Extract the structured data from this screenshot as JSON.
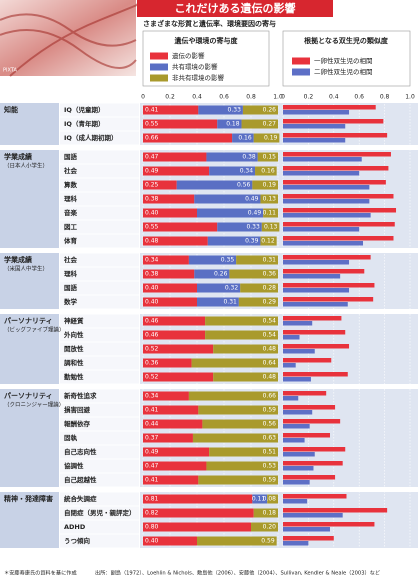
{
  "header": {
    "title": "これだけある遺伝の影響",
    "subtitle": "さまざまな形質と遺伝率、環境要因の寄与",
    "credit": "PIXTA"
  },
  "footer": {
    "note": "＊安藤寿康氏の資料を基に作成",
    "source": "出所：副島（1972）、Loehlin & Nichols、敷島他（2006）、安藤他（2004）、Sullivan, Kendler & Neale（2003）など"
  },
  "chart_data": [
    {
      "type": "bar",
      "orientation": "horizontal",
      "stacked": true,
      "title": "遺伝や環境の寄与度",
      "xlim": [
        0,
        1
      ],
      "xticks": [
        0,
        0.2,
        0.4,
        0.6,
        0.8,
        {
          "value": 1,
          "label": "1.0"
        }
      ],
      "grid": true,
      "groups": [
        {
          "name": "知能",
          "categories": [
            "IQ（児童期）",
            "IQ（青年期）",
            "IQ（成人期初期）"
          ]
        },
        {
          "name": "学業成績",
          "note": "（日本人小学生）",
          "categories": [
            "国語",
            "社会",
            "算数",
            "理科",
            "音楽",
            "図工",
            "体育"
          ]
        },
        {
          "name": "学業成績",
          "note": "（米国人中学生）",
          "categories": [
            "社会",
            "理科",
            "国語",
            "数学"
          ]
        },
        {
          "name": "パーソナリティ",
          "note": "（ビッグファイブ理論）",
          "categories": [
            "神経質",
            "外向性",
            "開放性",
            "調和性",
            "勤勉性"
          ]
        },
        {
          "name": "パーソナリティ",
          "note": "（クロニンジャー理論）",
          "categories": [
            "新奇性追求",
            "損害回避",
            "報酬依存",
            "固執",
            "自己志向性",
            "協調性",
            "自己超越性"
          ]
        },
        {
          "name": "精神・発達障害",
          "categories": [
            "統合失調症",
            "自閉症（男児・親評定）",
            "ADHD",
            "うつ傾向"
          ]
        }
      ],
      "series": [
        {
          "name": "遺伝の影響",
          "color": "#e8323c",
          "values": [
            0.41,
            0.55,
            0.66,
            0.47,
            0.49,
            0.25,
            0.38,
            0.4,
            0.55,
            0.48,
            0.34,
            0.38,
            0.4,
            0.4,
            0.46,
            0.46,
            0.52,
            0.36,
            0.52,
            0.34,
            0.41,
            0.44,
            0.37,
            0.49,
            0.47,
            0.41,
            0.81,
            0.82,
            0.8,
            0.4
          ],
          "value_labels": [
            "0.41",
            "0.55",
            "0.66",
            "0.47",
            "0.49",
            "0.25",
            "0.38",
            "0.40",
            "0.55",
            "0.48",
            "0.34",
            "0.38",
            "0.40",
            "0.40",
            "0.46",
            "0.46",
            "0.52",
            "0.36",
            "0.52",
            "0.34",
            "0.41",
            "0.44",
            "0.37",
            "0.49",
            "0.47",
            "0.41",
            "0.81",
            "0.82",
            "0.80",
            "0.40"
          ]
        },
        {
          "name": "共有環境の影響",
          "color": "#5a6fc4",
          "values": [
            0.33,
            0.18,
            0.16,
            0.38,
            0.34,
            0.56,
            0.49,
            0.49,
            0.33,
            0.39,
            0.35,
            0.26,
            0.32,
            0.31,
            null,
            null,
            null,
            null,
            null,
            null,
            null,
            null,
            null,
            null,
            null,
            null,
            0.11,
            null,
            null,
            null
          ],
          "value_labels": [
            "0.33",
            "0.18",
            "0.16",
            "0.38",
            "0.34",
            "0.56",
            "0.49",
            "0.49",
            "0.33",
            "0.39",
            "0.35",
            "0.26",
            "0.32",
            "0.31",
            null,
            null,
            null,
            null,
            null,
            null,
            null,
            null,
            null,
            null,
            null,
            null,
            "0.11",
            null,
            null,
            null
          ]
        },
        {
          "name": "非共有環境の影響",
          "color": "#a99a2c",
          "values": [
            0.26,
            0.27,
            0.19,
            0.15,
            0.16,
            0.19,
            0.13,
            0.11,
            0.13,
            0.12,
            0.31,
            0.36,
            0.28,
            0.29,
            0.54,
            0.54,
            0.48,
            0.64,
            0.48,
            0.66,
            0.59,
            0.56,
            0.63,
            0.51,
            0.53,
            0.59,
            0.08,
            0.18,
            0.2,
            0.59
          ],
          "value_labels": [
            "0.26",
            "0.27",
            "0.19",
            "0.15",
            "0.16",
            "0.19",
            "0.13",
            "0.11",
            "0.13",
            "0.12",
            "0.31",
            "0.36",
            "0.28",
            "0.29",
            "0.54",
            "0.54",
            "0.48",
            "0.64",
            "0.48",
            "0.66",
            "0.59",
            "0.56",
            "0.63",
            "0.51",
            "0.53",
            "0.59",
            "0.08",
            "0.18",
            "0.20",
            "0.59"
          ]
        }
      ]
    },
    {
      "type": "bar",
      "orientation": "horizontal",
      "title": "根拠となる双生児の類似度",
      "xlim": [
        0,
        1
      ],
      "xticks": [
        0,
        0.2,
        0.4,
        0.6,
        0.8,
        {
          "value": 1,
          "label": "1.0"
        }
      ],
      "grid": true,
      "series": [
        {
          "name": "一卵性双生児の相関",
          "color": "#e8323c",
          "values": [
            0.73,
            0.79,
            0.82,
            0.85,
            0.83,
            0.81,
            0.87,
            0.89,
            0.88,
            0.87,
            0.69,
            0.64,
            0.72,
            0.71,
            0.46,
            0.49,
            0.52,
            0.38,
            0.51,
            0.34,
            0.41,
            0.45,
            0.37,
            0.49,
            0.47,
            0.41,
            0.5,
            0.82,
            0.72,
            0.4
          ]
        },
        {
          "name": "二卵性双生児の相関",
          "color": "#5d6fc6",
          "values": [
            0.52,
            0.49,
            0.49,
            0.62,
            0.6,
            0.68,
            0.68,
            0.69,
            0.6,
            0.63,
            0.52,
            0.45,
            0.52,
            0.51,
            0.23,
            0.13,
            0.25,
            0.1,
            0.22,
            0.12,
            0.23,
            0.21,
            0.17,
            0.25,
            0.24,
            0.21,
            0.19,
            0.47,
            0.37,
            0.2
          ]
        }
      ]
    }
  ]
}
